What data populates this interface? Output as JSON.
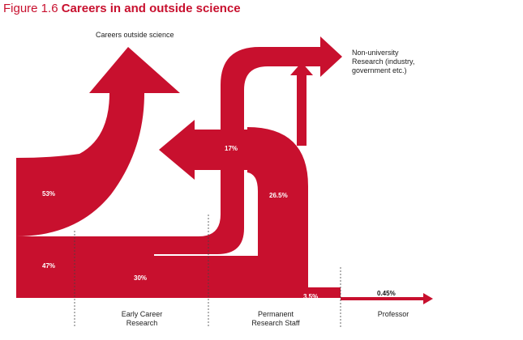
{
  "figure": {
    "number": "Figure 1.6",
    "title": "Careers in and outside science"
  },
  "labels": {
    "outside": "Careers outside science",
    "non_university_line1": "Non-university",
    "non_university_line2": "Research (industry,",
    "non_university_line3": "government etc.)"
  },
  "percentages": {
    "p53": "53%",
    "p47": "47%",
    "p30": "30%",
    "p17": "17%",
    "p26_5": "26.5%",
    "p3_5": "3.5%",
    "p0_45": "0.45%"
  },
  "stages": [
    {
      "line1": "Early Career",
      "line2": "Research"
    },
    {
      "line1": "Permanent",
      "line2": "Research Staff"
    },
    {
      "line1": "Professor",
      "line2": ""
    }
  ],
  "colors": {
    "flow": "#c8102e",
    "text": "#222222"
  }
}
